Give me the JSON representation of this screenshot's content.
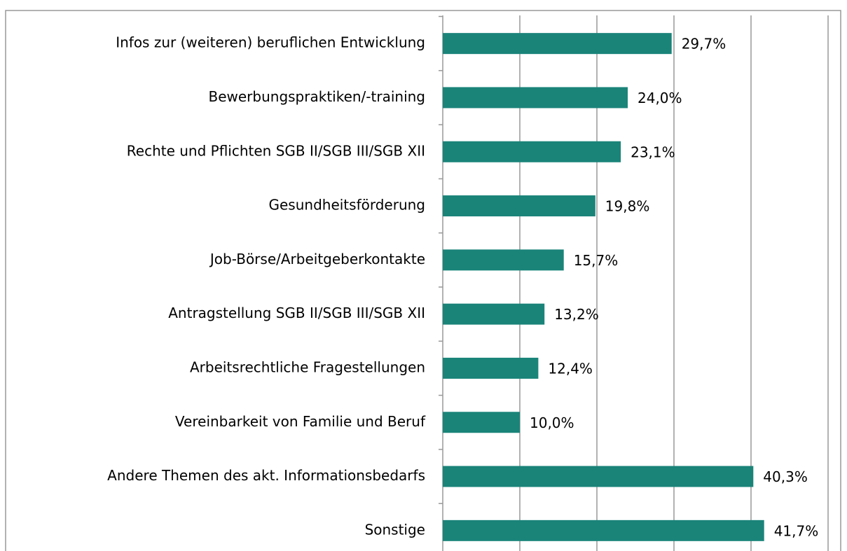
{
  "chart_data": {
    "type": "bar",
    "orientation": "horizontal",
    "categories": [
      "Infos zur (weiteren) beruflichen Entwicklung",
      "Bewerbungspraktiken/-training",
      "Rechte und Pflichten SGB II/SGB III/SGB XII",
      "Gesundheitsförderung",
      "Job-Börse/Arbeitgeberkontakte",
      "Antragstellung SGB II/SGB III/SGB XII",
      "Arbeitsrechtliche Fragestellungen",
      "Vereinbarkeit von Familie und Beruf",
      "Andere Themen des akt. Informationsbedarfs",
      "Sonstige"
    ],
    "values": [
      29.7,
      24.0,
      23.1,
      19.8,
      15.7,
      13.2,
      12.4,
      10.0,
      40.3,
      41.7
    ],
    "value_labels": [
      "29,7%",
      "24,0%",
      "23,1%",
      "19,8%",
      "15,7%",
      "13,2%",
      "12,4%",
      "10,0%",
      "40,3%",
      "41,7%"
    ],
    "color": "#1a8479",
    "xlim": [
      0,
      50
    ],
    "xticks": [
      0,
      10,
      20,
      30,
      40,
      50
    ],
    "grid": true
  }
}
